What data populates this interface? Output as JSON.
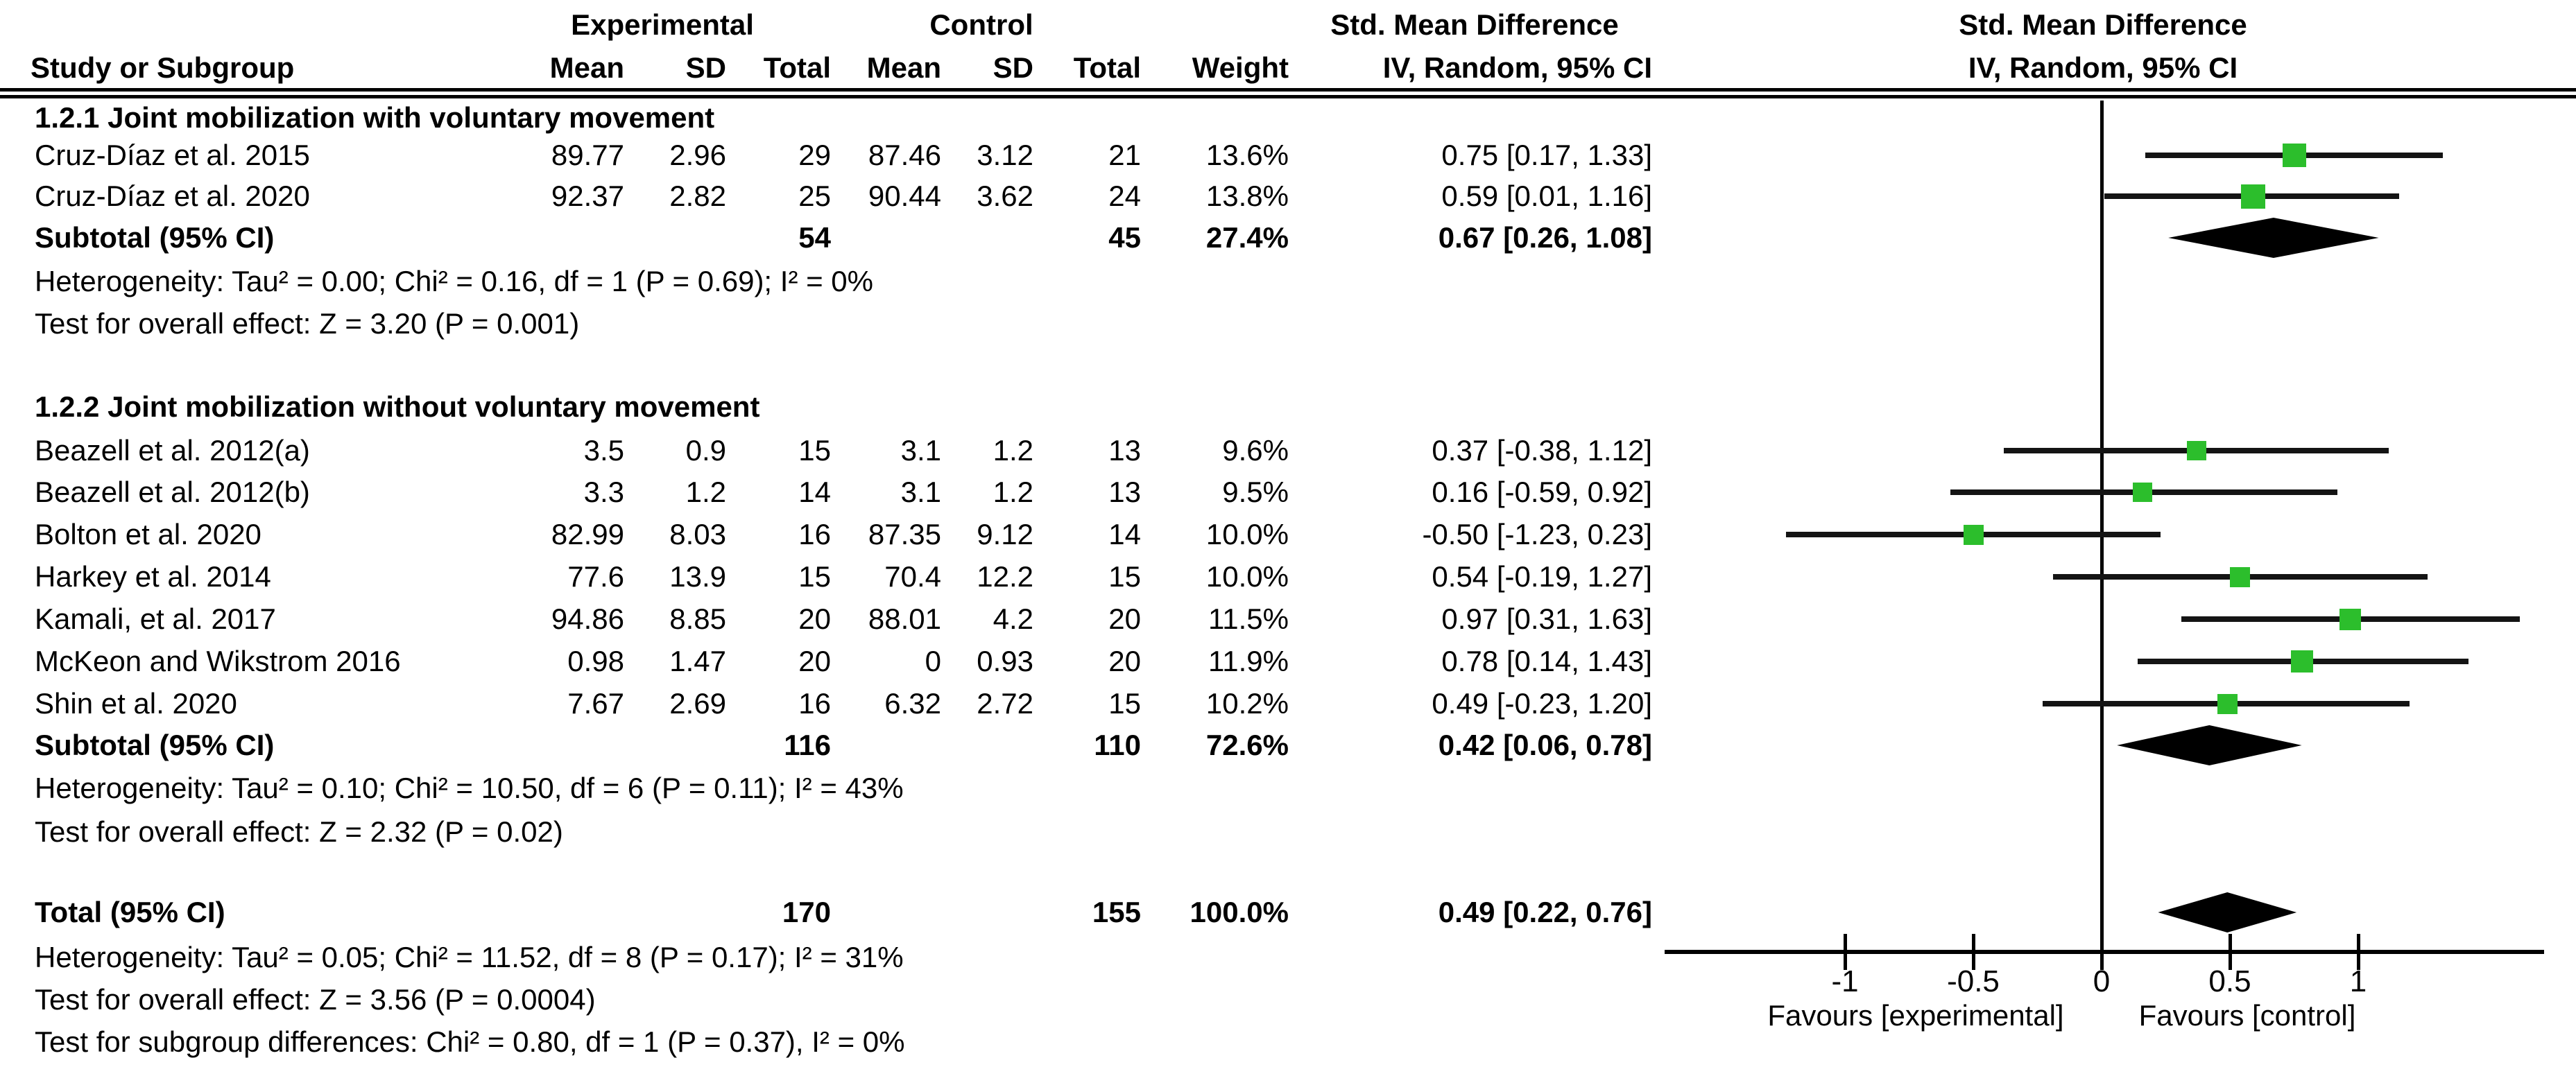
{
  "header": {
    "group_experimental": "Experimental",
    "group_control": "Control",
    "group_effect": "Std. Mean Difference",
    "study": "Study or Subgroup",
    "mean": "Mean",
    "sd": "SD",
    "total": "Total",
    "mean2": "Mean",
    "sd2": "SD",
    "total2": "Total",
    "weight": "Weight",
    "ci": "IV, Random, 95% CI",
    "plot_line1": "Std. Mean Difference",
    "plot_line2": "IV, Random, 95% CI"
  },
  "subgroups": [
    {
      "title": "1.2.1 Joint mobilization with voluntary movement",
      "studies": [
        {
          "name": "Cruz-Díaz et al. 2015",
          "exp_mean": "89.77",
          "exp_sd": "2.96",
          "exp_total": "29",
          "ctrl_mean": "87.46",
          "ctrl_sd": "3.12",
          "ctrl_total": "21",
          "weight": "13.6%",
          "ci": "0.75 [0.17, 1.33]"
        },
        {
          "name": "Cruz-Díaz et al. 2020",
          "exp_mean": "92.37",
          "exp_sd": "2.82",
          "exp_total": "25",
          "ctrl_mean": "90.44",
          "ctrl_sd": "3.62",
          "ctrl_total": "24",
          "weight": "13.8%",
          "ci": "0.59 [0.01, 1.16]"
        }
      ],
      "subtotal": {
        "label": "Subtotal (95% CI)",
        "exp_total": "54",
        "ctrl_total": "45",
        "weight": "27.4%",
        "ci": "0.67 [0.26, 1.08]"
      },
      "heterogeneity": "Heterogeneity: Tau² = 0.00; Chi² = 0.16, df = 1 (P = 0.69); I² = 0%",
      "overall_test": "Test for overall effect: Z = 3.20 (P = 0.001)"
    },
    {
      "title": "1.2.2 Joint mobilization without voluntary movement",
      "studies": [
        {
          "name": "Beazell et al. 2012(a)",
          "exp_mean": "3.5",
          "exp_sd": "0.9",
          "exp_total": "15",
          "ctrl_mean": "3.1",
          "ctrl_sd": "1.2",
          "ctrl_total": "13",
          "weight": "9.6%",
          "ci": "0.37 [-0.38, 1.12]"
        },
        {
          "name": "Beazell et al. 2012(b)",
          "exp_mean": "3.3",
          "exp_sd": "1.2",
          "exp_total": "14",
          "ctrl_mean": "3.1",
          "ctrl_sd": "1.2",
          "ctrl_total": "13",
          "weight": "9.5%",
          "ci": "0.16 [-0.59, 0.92]"
        },
        {
          "name": "Bolton et al. 2020",
          "exp_mean": "82.99",
          "exp_sd": "8.03",
          "exp_total": "16",
          "ctrl_mean": "87.35",
          "ctrl_sd": "9.12",
          "ctrl_total": "14",
          "weight": "10.0%",
          "ci": "-0.50 [-1.23, 0.23]"
        },
        {
          "name": "Harkey et al. 2014",
          "exp_mean": "77.6",
          "exp_sd": "13.9",
          "exp_total": "15",
          "ctrl_mean": "70.4",
          "ctrl_sd": "12.2",
          "ctrl_total": "15",
          "weight": "10.0%",
          "ci": "0.54 [-0.19, 1.27]"
        },
        {
          "name": "Kamali, et al. 2017",
          "exp_mean": "94.86",
          "exp_sd": "8.85",
          "exp_total": "20",
          "ctrl_mean": "88.01",
          "ctrl_sd": "4.2",
          "ctrl_total": "20",
          "weight": "11.5%",
          "ci": "0.97 [0.31, 1.63]"
        },
        {
          "name": "McKeon and Wikstrom 2016",
          "exp_mean": "0.98",
          "exp_sd": "1.47",
          "exp_total": "20",
          "ctrl_mean": "0",
          "ctrl_sd": "0.93",
          "ctrl_total": "20",
          "weight": "11.9%",
          "ci": "0.78 [0.14, 1.43]"
        },
        {
          "name": "Shin et al. 2020",
          "exp_mean": "7.67",
          "exp_sd": "2.69",
          "exp_total": "16",
          "ctrl_mean": "6.32",
          "ctrl_sd": "2.72",
          "ctrl_total": "15",
          "weight": "10.2%",
          "ci": "0.49 [-0.23, 1.20]"
        }
      ],
      "subtotal": {
        "label": "Subtotal (95% CI)",
        "exp_total": "116",
        "ctrl_total": "110",
        "weight": "72.6%",
        "ci": "0.42 [0.06, 0.78]"
      },
      "heterogeneity": "Heterogeneity: Tau² = 0.10; Chi² = 10.50, df = 6 (P = 0.11); I² = 43%",
      "overall_test": "Test for overall effect: Z = 2.32 (P = 0.02)"
    }
  ],
  "total_row": {
    "label": "Total (95% CI)",
    "exp_total": "170",
    "ctrl_total": "155",
    "weight": "100.0%",
    "ci": "0.49 [0.22, 0.76]"
  },
  "footer": {
    "heterogeneity": "Heterogeneity: Tau² = 0.05; Chi² = 11.52, df = 8 (P = 0.17); I² = 31%",
    "overall_test": "Test for overall effect: Z = 3.56 (P = 0.0004)",
    "subgroup_test": "Test for subgroup differences: Chi² = 0.80, df = 1 (P = 0.37), I² = 0%"
  },
  "axis": {
    "ticks": [
      "-1",
      "-0.5",
      "0",
      "0.5",
      "1"
    ],
    "favours_left": "Favours [experimental]",
    "favours_right": "Favours [control]"
  },
  "colors": {
    "marker_green": "#2cbe2c",
    "text": "#000000",
    "background": "#ffffff"
  },
  "chart_data": {
    "type": "forest",
    "effect_measure": "Std. Mean Difference",
    "method": "IV, Random, 95% CI",
    "x_ticks": [
      -1,
      -0.5,
      0,
      0.5,
      1
    ],
    "favours_left": "Favours [experimental]",
    "favours_right": "Favours [control]",
    "subgroups": [
      {
        "name": "1.2.1 Joint mobilization with voluntary movement",
        "studies": [
          {
            "study": "Cruz-Díaz et al. 2015",
            "est": 0.75,
            "lo": 0.17,
            "hi": 1.33,
            "weight": 13.6
          },
          {
            "study": "Cruz-Díaz et al. 2020",
            "est": 0.59,
            "lo": 0.01,
            "hi": 1.16,
            "weight": 13.8
          }
        ],
        "subtotal": {
          "est": 0.67,
          "lo": 0.26,
          "hi": 1.08,
          "weight": 27.4,
          "exp_total": 54,
          "ctrl_total": 45
        },
        "tau2": 0.0,
        "chi2": 0.16,
        "df": 1,
        "p_heterogeneity": 0.69,
        "i2_pct": 0,
        "z": 3.2,
        "p_overall": 0.001
      },
      {
        "name": "1.2.2 Joint mobilization without voluntary movement",
        "studies": [
          {
            "study": "Beazell et al. 2012(a)",
            "est": 0.37,
            "lo": -0.38,
            "hi": 1.12,
            "weight": 9.6
          },
          {
            "study": "Beazell et al. 2012(b)",
            "est": 0.16,
            "lo": -0.59,
            "hi": 0.92,
            "weight": 9.5
          },
          {
            "study": "Bolton et al. 2020",
            "est": -0.5,
            "lo": -1.23,
            "hi": 0.23,
            "weight": 10.0
          },
          {
            "study": "Harkey et al. 2014",
            "est": 0.54,
            "lo": -0.19,
            "hi": 1.27,
            "weight": 10.0
          },
          {
            "study": "Kamali, et al. 2017",
            "est": 0.97,
            "lo": 0.31,
            "hi": 1.63,
            "weight": 11.5
          },
          {
            "study": "McKeon and Wikstrom 2016",
            "est": 0.78,
            "lo": 0.14,
            "hi": 1.43,
            "weight": 11.9
          },
          {
            "study": "Shin et al. 2020",
            "est": 0.49,
            "lo": -0.23,
            "hi": 1.2,
            "weight": 10.2
          }
        ],
        "subtotal": {
          "est": 0.42,
          "lo": 0.06,
          "hi": 0.78,
          "weight": 72.6,
          "exp_total": 116,
          "ctrl_total": 110
        },
        "tau2": 0.1,
        "chi2": 10.5,
        "df": 6,
        "p_heterogeneity": 0.11,
        "i2_pct": 43,
        "z": 2.32,
        "p_overall": 0.02
      }
    ],
    "total": {
      "est": 0.49,
      "lo": 0.22,
      "hi": 0.76,
      "weight": 100.0,
      "exp_total": 170,
      "ctrl_total": 155
    },
    "total_tests": {
      "tau2": 0.05,
      "chi2": 11.52,
      "df": 8,
      "p_heterogeneity": 0.17,
      "i2_pct": 31,
      "z": 3.56,
      "p_overall": 0.0004,
      "subgroup_chi2": 0.8,
      "subgroup_df": 1,
      "subgroup_p": 0.37,
      "subgroup_i2_pct": 0
    }
  }
}
